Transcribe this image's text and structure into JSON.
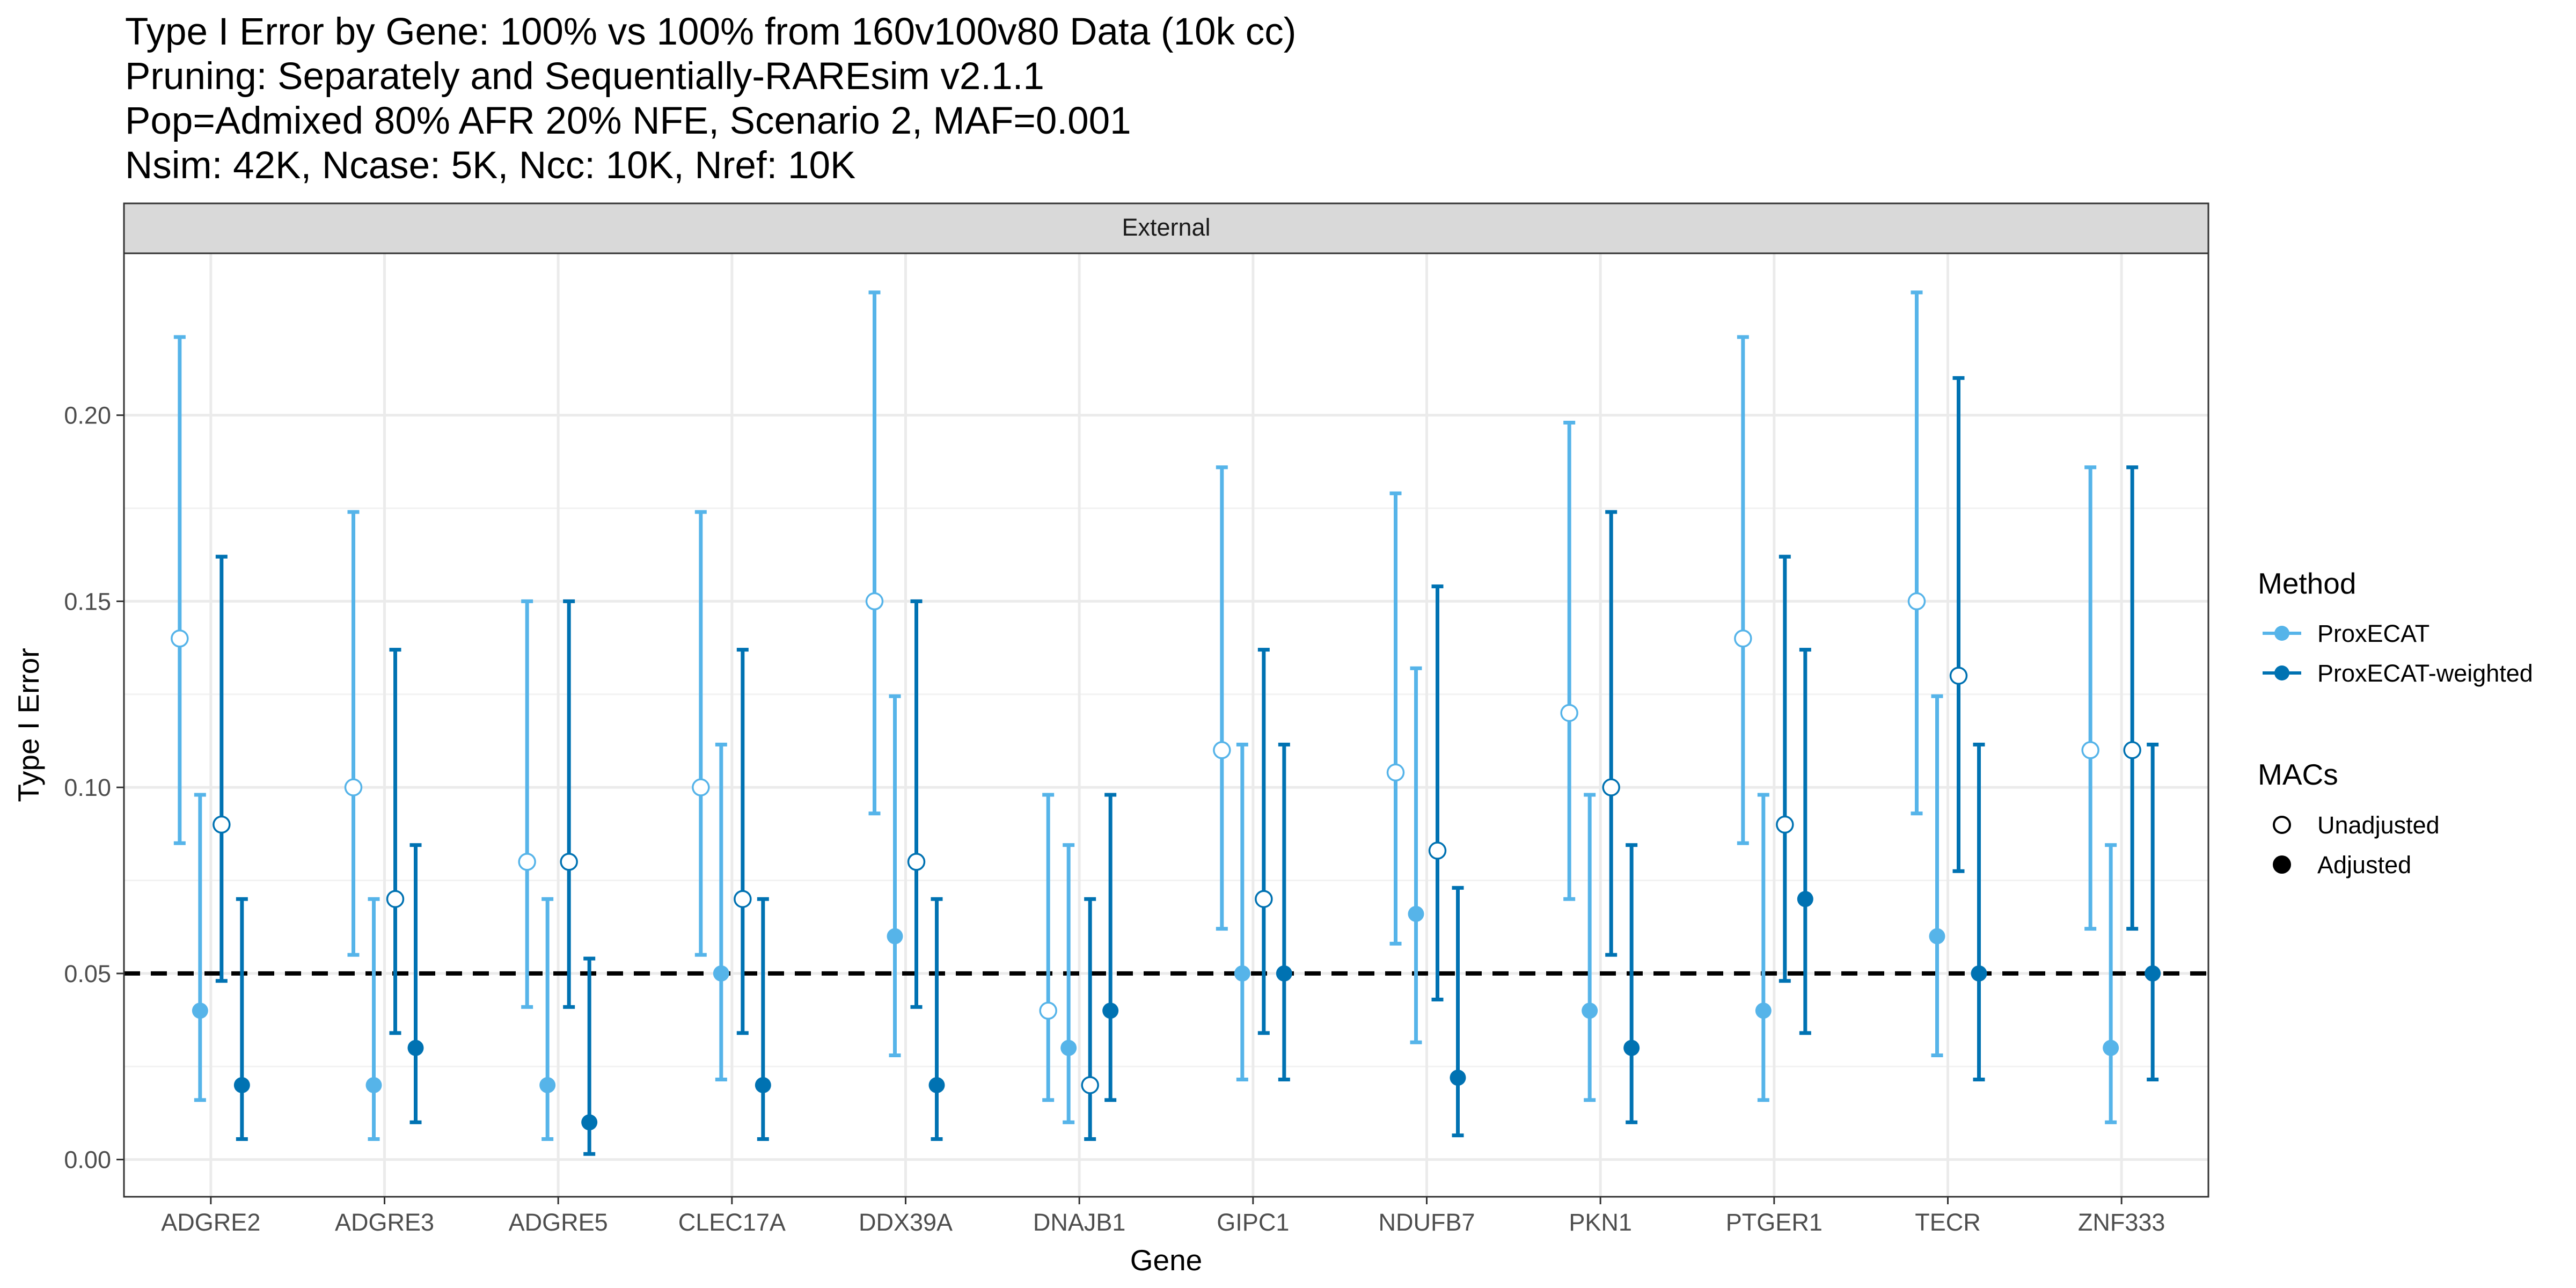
{
  "title_lines": [
    "Type I Error by Gene: 100% vs 100% from 160v100v80 Data (10k cc)",
    "Pruning: Separately and Sequentially-RAREsim v2.1.1",
    "Pop=Admixed 80% AFR 20% NFE, Scenario 2, MAF=0.001",
    "Nsim: 42K, Ncase: 5K, Ncc: 10K, Nref: 10K"
  ],
  "chart_data": {
    "type": "scatter",
    "panel_label": "External",
    "xlabel": "Gene",
    "ylabel": "Type I Error",
    "ylim": [
      -0.01,
      0.2435
    ],
    "yticks": [
      0.0,
      0.05,
      0.1,
      0.15,
      0.2
    ],
    "ytick_labels": [
      "0.00",
      "0.05",
      "0.10",
      "0.15",
      "0.20"
    ],
    "reference_line": 0.05,
    "grid": true,
    "categories": [
      "ADGRE2",
      "ADGRE3",
      "ADGRE5",
      "CLEC17A",
      "DDX39A",
      "DNAJB1",
      "GIPC1",
      "NDUFB7",
      "PKN1",
      "PTGER1",
      "TECR",
      "ZNF333"
    ],
    "series": [
      {
        "method": "ProxECAT",
        "macs": "Unadjusted",
        "color": "#56B4E9",
        "filled": false,
        "values": [
          {
            "y": 0.14,
            "low": 0.085,
            "high": 0.221
          },
          {
            "y": 0.1,
            "low": 0.055,
            "high": 0.174
          },
          {
            "y": 0.08,
            "low": 0.041,
            "high": 0.15
          },
          {
            "y": 0.1,
            "low": 0.055,
            "high": 0.174
          },
          {
            "y": 0.15,
            "low": 0.093,
            "high": 0.233
          },
          {
            "y": 0.04,
            "low": 0.016,
            "high": 0.098
          },
          {
            "y": 0.11,
            "low": 0.062,
            "high": 0.186
          },
          {
            "y": 0.104,
            "low": 0.058,
            "high": 0.179
          },
          {
            "y": 0.12,
            "low": 0.07,
            "high": 0.198
          },
          {
            "y": 0.14,
            "low": 0.085,
            "high": 0.221
          },
          {
            "y": 0.15,
            "low": 0.093,
            "high": 0.233
          },
          {
            "y": 0.11,
            "low": 0.062,
            "high": 0.186
          }
        ]
      },
      {
        "method": "ProxECAT",
        "macs": "Adjusted",
        "color": "#56B4E9",
        "filled": true,
        "values": [
          {
            "y": 0.04,
            "low": 0.016,
            "high": 0.098
          },
          {
            "y": 0.02,
            "low": 0.0055,
            "high": 0.07
          },
          {
            "y": 0.02,
            "low": 0.0055,
            "high": 0.07
          },
          {
            "y": 0.05,
            "low": 0.0215,
            "high": 0.1115
          },
          {
            "y": 0.06,
            "low": 0.028,
            "high": 0.1245
          },
          {
            "y": 0.03,
            "low": 0.01,
            "high": 0.0845
          },
          {
            "y": 0.05,
            "low": 0.0215,
            "high": 0.1115
          },
          {
            "y": 0.066,
            "low": 0.0315,
            "high": 0.132
          },
          {
            "y": 0.04,
            "low": 0.016,
            "high": 0.098
          },
          {
            "y": 0.04,
            "low": 0.016,
            "high": 0.098
          },
          {
            "y": 0.06,
            "low": 0.028,
            "high": 0.1245
          },
          {
            "y": 0.03,
            "low": 0.01,
            "high": 0.0845
          }
        ]
      },
      {
        "method": "ProxECAT-weighted",
        "macs": "Unadjusted",
        "color": "#0072B2",
        "filled": false,
        "values": [
          {
            "y": 0.09,
            "low": 0.048,
            "high": 0.162
          },
          {
            "y": 0.07,
            "low": 0.034,
            "high": 0.137
          },
          {
            "y": 0.08,
            "low": 0.041,
            "high": 0.15
          },
          {
            "y": 0.07,
            "low": 0.034,
            "high": 0.137
          },
          {
            "y": 0.08,
            "low": 0.041,
            "high": 0.15
          },
          {
            "y": 0.02,
            "low": 0.0055,
            "high": 0.07
          },
          {
            "y": 0.07,
            "low": 0.034,
            "high": 0.137
          },
          {
            "y": 0.083,
            "low": 0.043,
            "high": 0.154
          },
          {
            "y": 0.1,
            "low": 0.055,
            "high": 0.174
          },
          {
            "y": 0.09,
            "low": 0.048,
            "high": 0.162
          },
          {
            "y": 0.13,
            "low": 0.0775,
            "high": 0.21
          },
          {
            "y": 0.11,
            "low": 0.062,
            "high": 0.186
          }
        ]
      },
      {
        "method": "ProxECAT-weighted",
        "macs": "Adjusted",
        "color": "#0072B2",
        "filled": true,
        "values": [
          {
            "y": 0.02,
            "low": 0.0055,
            "high": 0.07
          },
          {
            "y": 0.03,
            "low": 0.01,
            "high": 0.0845
          },
          {
            "y": 0.01,
            "low": 0.0015,
            "high": 0.054
          },
          {
            "y": 0.02,
            "low": 0.0055,
            "high": 0.07
          },
          {
            "y": 0.02,
            "low": 0.0055,
            "high": 0.07
          },
          {
            "y": 0.04,
            "low": 0.016,
            "high": 0.098
          },
          {
            "y": 0.05,
            "low": 0.0215,
            "high": 0.1115
          },
          {
            "y": 0.022,
            "low": 0.0065,
            "high": 0.073
          },
          {
            "y": 0.03,
            "low": 0.01,
            "high": 0.0845
          },
          {
            "y": 0.07,
            "low": 0.034,
            "high": 0.137
          },
          {
            "y": 0.05,
            "low": 0.0215,
            "high": 0.1115
          },
          {
            "y": 0.05,
            "low": 0.0215,
            "high": 0.1115
          }
        ]
      }
    ],
    "legend": {
      "placement": "right",
      "method_title": "Method",
      "methods": [
        {
          "label": "ProxECAT",
          "color": "#56B4E9"
        },
        {
          "label": "ProxECAT-weighted",
          "color": "#0072B2"
        }
      ],
      "macs_title": "MACs",
      "macs": [
        {
          "label": "Unadjusted",
          "filled": false
        },
        {
          "label": "Adjusted",
          "filled": true
        }
      ]
    }
  }
}
